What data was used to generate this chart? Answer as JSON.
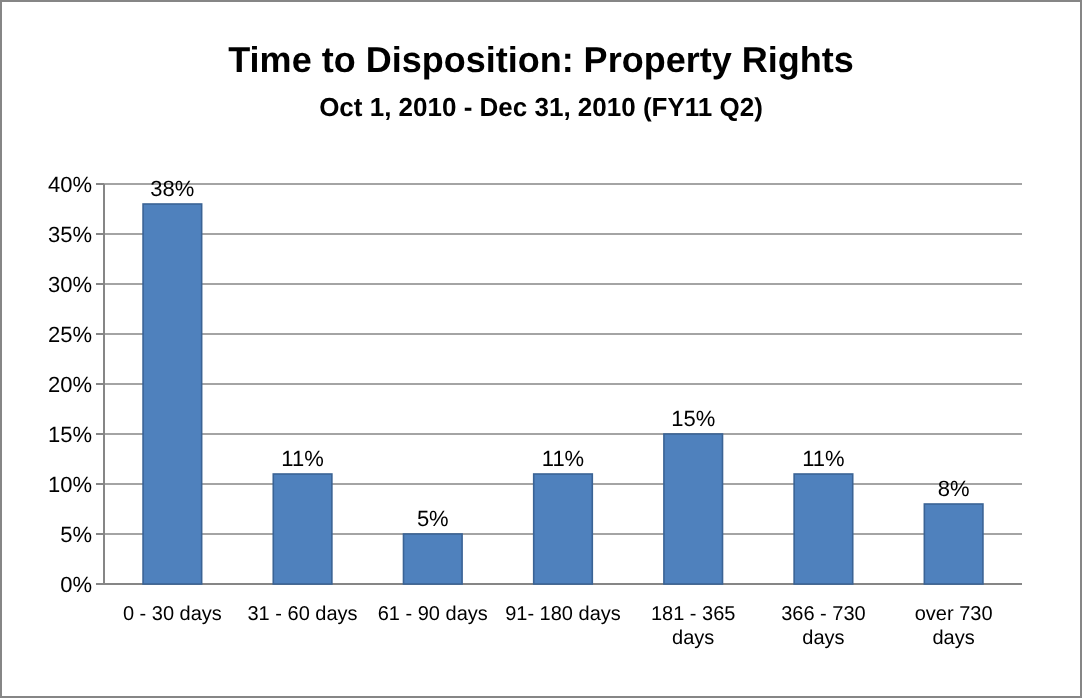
{
  "chart_data": {
    "type": "bar",
    "title": "Time to Disposition:  Property Rights",
    "subtitle": "Oct 1, 2010 - Dec 31, 2010 (FY11 Q2)",
    "categories": [
      "0 - 30 days",
      "31 - 60 days",
      "61 - 90 days",
      "91- 180 days",
      "181 - 365 days",
      "366 - 730 days",
      "over 730 days"
    ],
    "values": [
      38,
      11,
      5,
      11,
      15,
      11,
      8
    ],
    "value_labels": [
      "38%",
      "11%",
      "5%",
      "11%",
      "15%",
      "11%",
      "8%"
    ],
    "color": "#4f81bd",
    "ylim": [
      0,
      40
    ],
    "yticks": [
      {
        "value": 0,
        "label": "0%"
      },
      {
        "value": 5,
        "label": "5%"
      },
      {
        "value": 10,
        "label": "10%"
      },
      {
        "value": 15,
        "label": "15%"
      },
      {
        "value": 20,
        "label": "20%"
      },
      {
        "value": 25,
        "label": "25%"
      },
      {
        "value": 30,
        "label": "30%"
      },
      {
        "value": 35,
        "label": "35%"
      },
      {
        "value": 40,
        "label": "40%"
      }
    ],
    "grid": "y"
  }
}
